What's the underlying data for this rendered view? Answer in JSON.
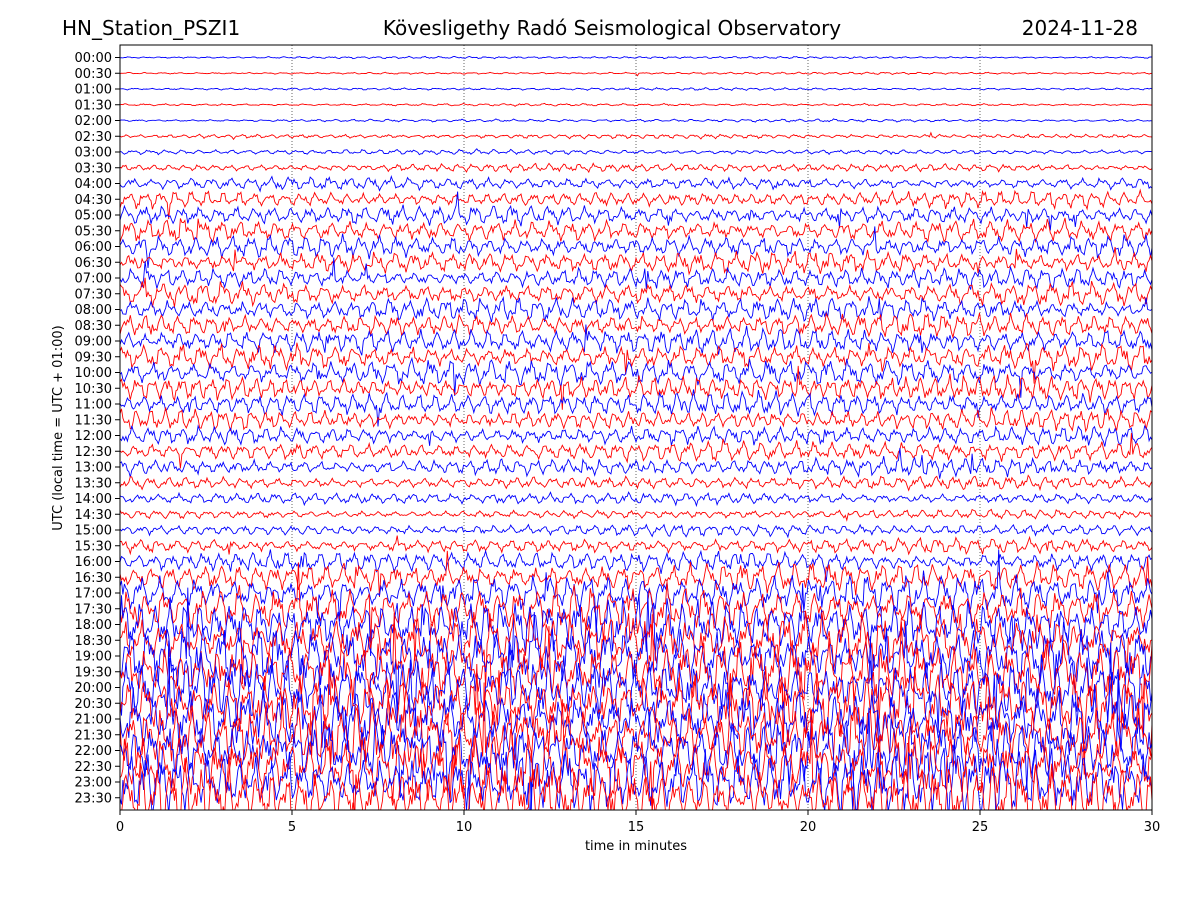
{
  "header": {
    "station": "HN_Station_PSZI1",
    "observatory": "Kövesligethy Radó Seismological Observatory",
    "date": "2024-11-28"
  },
  "chart_data": {
    "type": "line",
    "title": "Kövesligethy Radó Seismological Observatory",
    "xlabel": "time in minutes",
    "ylabel": "UTC (local time = UTC + 01:00)",
    "xlim": [
      0,
      30
    ],
    "x_ticks": [
      "0",
      "5",
      "10",
      "15",
      "20",
      "25",
      "30"
    ],
    "grid": "vertical dotted lines every 5 minutes",
    "row_colors": [
      "#0000ff",
      "#ff0000"
    ],
    "rows": [
      {
        "label": "00:00",
        "amplitude": 0.15
      },
      {
        "label": "00:30",
        "amplitude": 0.15
      },
      {
        "label": "01:00",
        "amplitude": 0.17
      },
      {
        "label": "01:30",
        "amplitude": 0.17
      },
      {
        "label": "02:00",
        "amplitude": 0.2
      },
      {
        "label": "02:30",
        "amplitude": 0.3
      },
      {
        "label": "03:00",
        "amplitude": 0.35
      },
      {
        "label": "03:30",
        "amplitude": 0.55
      },
      {
        "label": "04:00",
        "amplitude": 0.85
      },
      {
        "label": "04:30",
        "amplitude": 1.1
      },
      {
        "label": "05:00",
        "amplitude": 1.3
      },
      {
        "label": "05:30",
        "amplitude": 1.5
      },
      {
        "label": "06:00",
        "amplitude": 1.5
      },
      {
        "label": "06:30",
        "amplitude": 1.5
      },
      {
        "label": "07:00",
        "amplitude": 1.4
      },
      {
        "label": "07:30",
        "amplitude": 1.5
      },
      {
        "label": "08:00",
        "amplitude": 1.6
      },
      {
        "label": "08:30",
        "amplitude": 1.6
      },
      {
        "label": "09:00",
        "amplitude": 1.7
      },
      {
        "label": "09:30",
        "amplitude": 1.7
      },
      {
        "label": "10:00",
        "amplitude": 1.8
      },
      {
        "label": "10:30",
        "amplitude": 1.7
      },
      {
        "label": "11:00",
        "amplitude": 1.6
      },
      {
        "label": "11:30",
        "amplitude": 1.4
      },
      {
        "label": "12:00",
        "amplitude": 1.3
      },
      {
        "label": "12:30",
        "amplitude": 1.3
      },
      {
        "label": "13:00",
        "amplitude": 1.2
      },
      {
        "label": "13:30",
        "amplitude": 0.9
      },
      {
        "label": "14:00",
        "amplitude": 0.8
      },
      {
        "label": "14:30",
        "amplitude": 0.6
      },
      {
        "label": "15:00",
        "amplitude": 0.8
      },
      {
        "label": "15:30",
        "amplitude": 1.0
      },
      {
        "label": "16:00",
        "amplitude": 1.4
      },
      {
        "label": "16:30",
        "amplitude": 2.0
      },
      {
        "label": "17:00",
        "amplitude": 2.5
      },
      {
        "label": "17:30",
        "amplitude": 3.0
      },
      {
        "label": "18:00",
        "amplitude": 3.5
      },
      {
        "label": "18:30",
        "amplitude": 3.8
      },
      {
        "label": "19:00",
        "amplitude": 4.0
      },
      {
        "label": "19:30",
        "amplitude": 4.2
      },
      {
        "label": "20:00",
        "amplitude": 4.2
      },
      {
        "label": "20:30",
        "amplitude": 4.3
      },
      {
        "label": "21:00",
        "amplitude": 4.3
      },
      {
        "label": "21:30",
        "amplitude": 4.4
      },
      {
        "label": "22:00",
        "amplitude": 4.4
      },
      {
        "label": "22:30",
        "amplitude": 4.5
      },
      {
        "label": "23:00",
        "amplitude": 4.5
      },
      {
        "label": "23:30",
        "amplitude": 4.5
      }
    ]
  }
}
